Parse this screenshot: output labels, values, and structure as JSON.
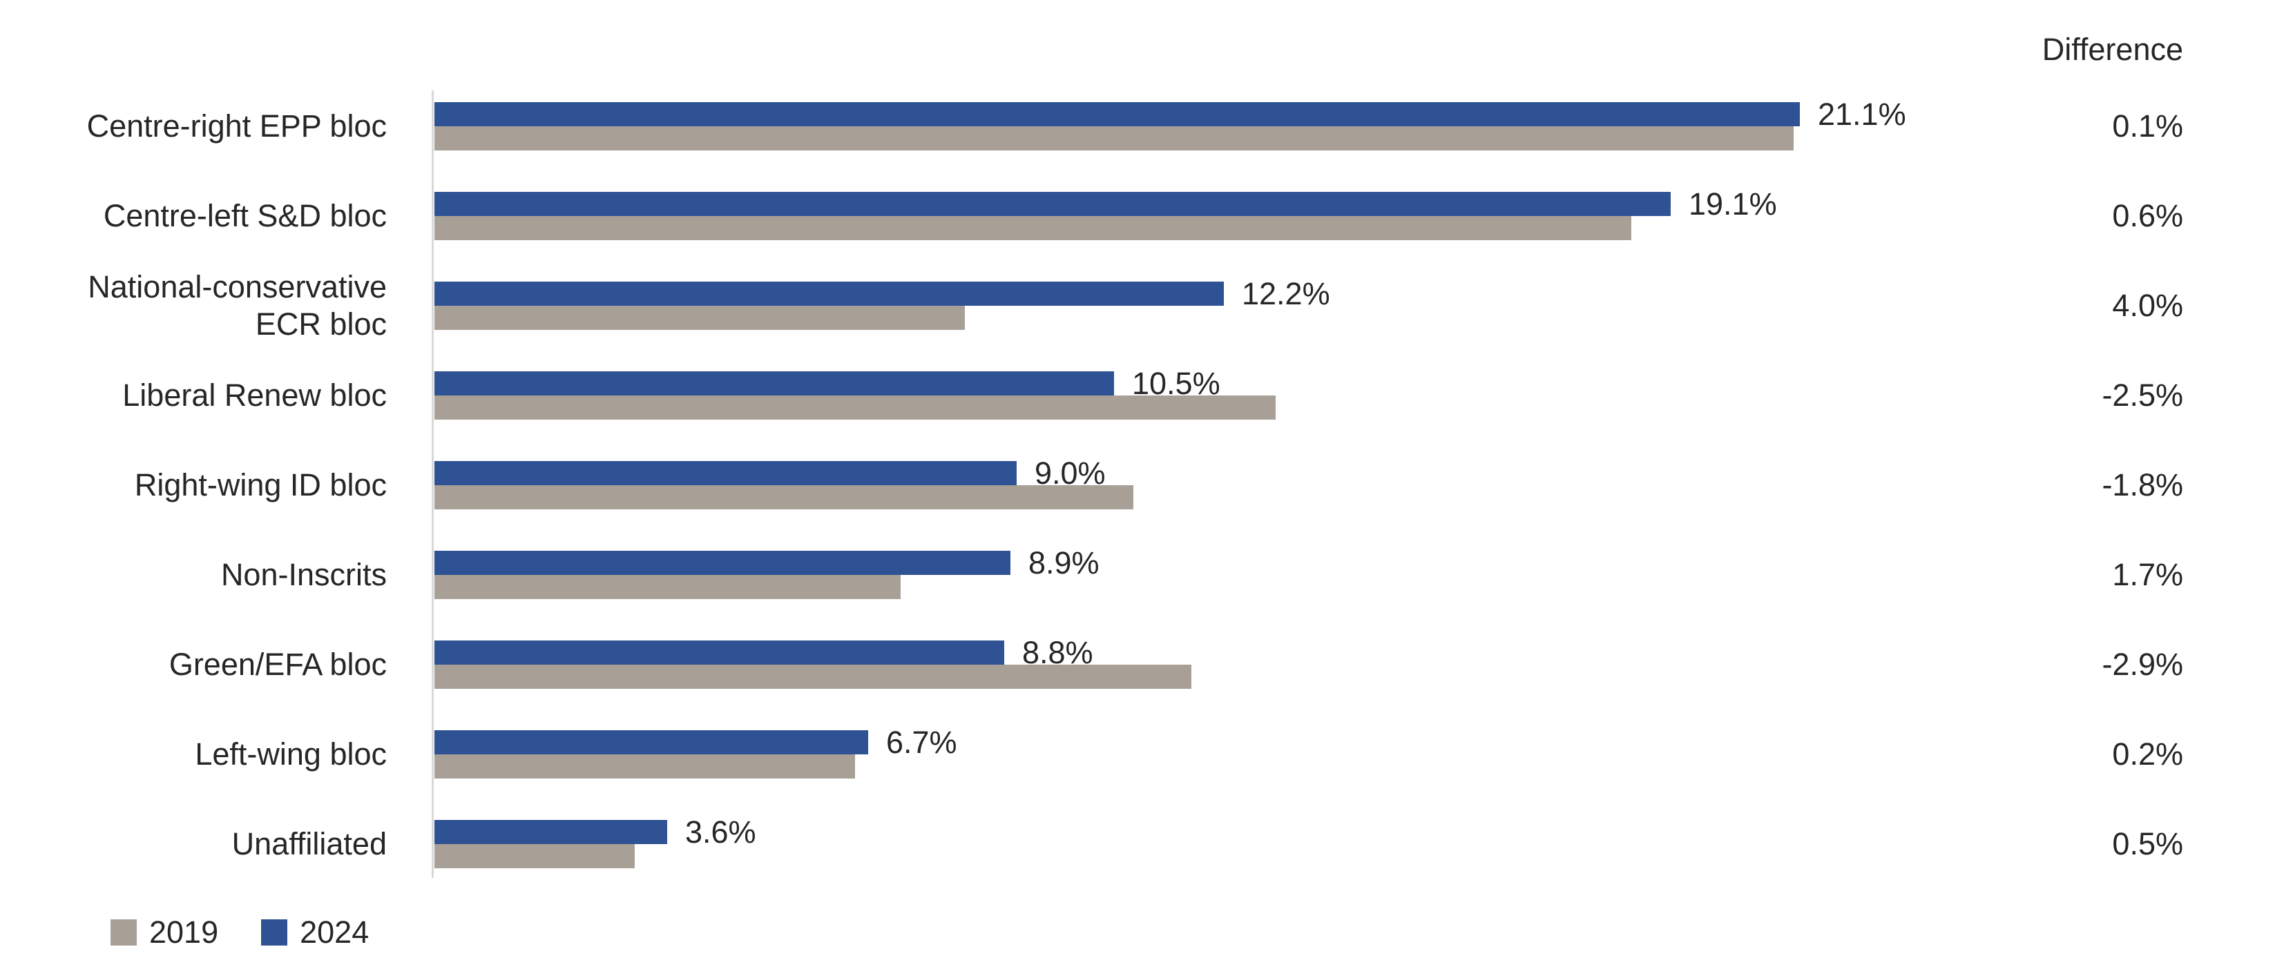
{
  "chart": {
    "background": "#ffffff",
    "text_color": "#262626",
    "axis_color": "#d8d8d8"
  },
  "chart_data": {
    "type": "bar",
    "orientation": "horizontal",
    "title": "",
    "xlabel": "",
    "ylabel": "",
    "xlim": [
      0,
      22
    ],
    "grid": false,
    "legend_position": "bottom-left",
    "categories": [
      "Centre-right EPP bloc",
      "Centre-left S&D bloc",
      "National-conservative\nECR bloc",
      "Liberal Renew bloc",
      "Right-wing ID bloc",
      "Non-Inscrits",
      "Green/EFA bloc",
      "Left-wing bloc",
      "Unaffiliated"
    ],
    "series": [
      {
        "name": "2019",
        "color": "#a8a096",
        "values": [
          21.0,
          18.5,
          8.2,
          13.0,
          10.8,
          7.2,
          11.7,
          6.5,
          3.1
        ]
      },
      {
        "name": "2024",
        "color": "#2e5294",
        "values": [
          21.1,
          19.1,
          12.2,
          10.5,
          9.0,
          8.9,
          8.8,
          6.7,
          3.6
        ]
      }
    ],
    "bar_value_labels": {
      "series": "2024",
      "labels": [
        "21.1%",
        "19.1%",
        "12.2%",
        "10.5%",
        "9.0%",
        "8.9%",
        "8.8%",
        "6.7%",
        "3.6%"
      ]
    },
    "difference_column": {
      "header": "Difference",
      "values": [
        "0.1%",
        "0.6%",
        "4.0%",
        "-2.5%",
        "-1.8%",
        "1.7%",
        "-2.9%",
        "0.2%",
        "0.5%"
      ]
    },
    "legend": [
      {
        "label": "2019",
        "color": "#a8a096"
      },
      {
        "label": "2024",
        "color": "#2e5294"
      }
    ]
  }
}
